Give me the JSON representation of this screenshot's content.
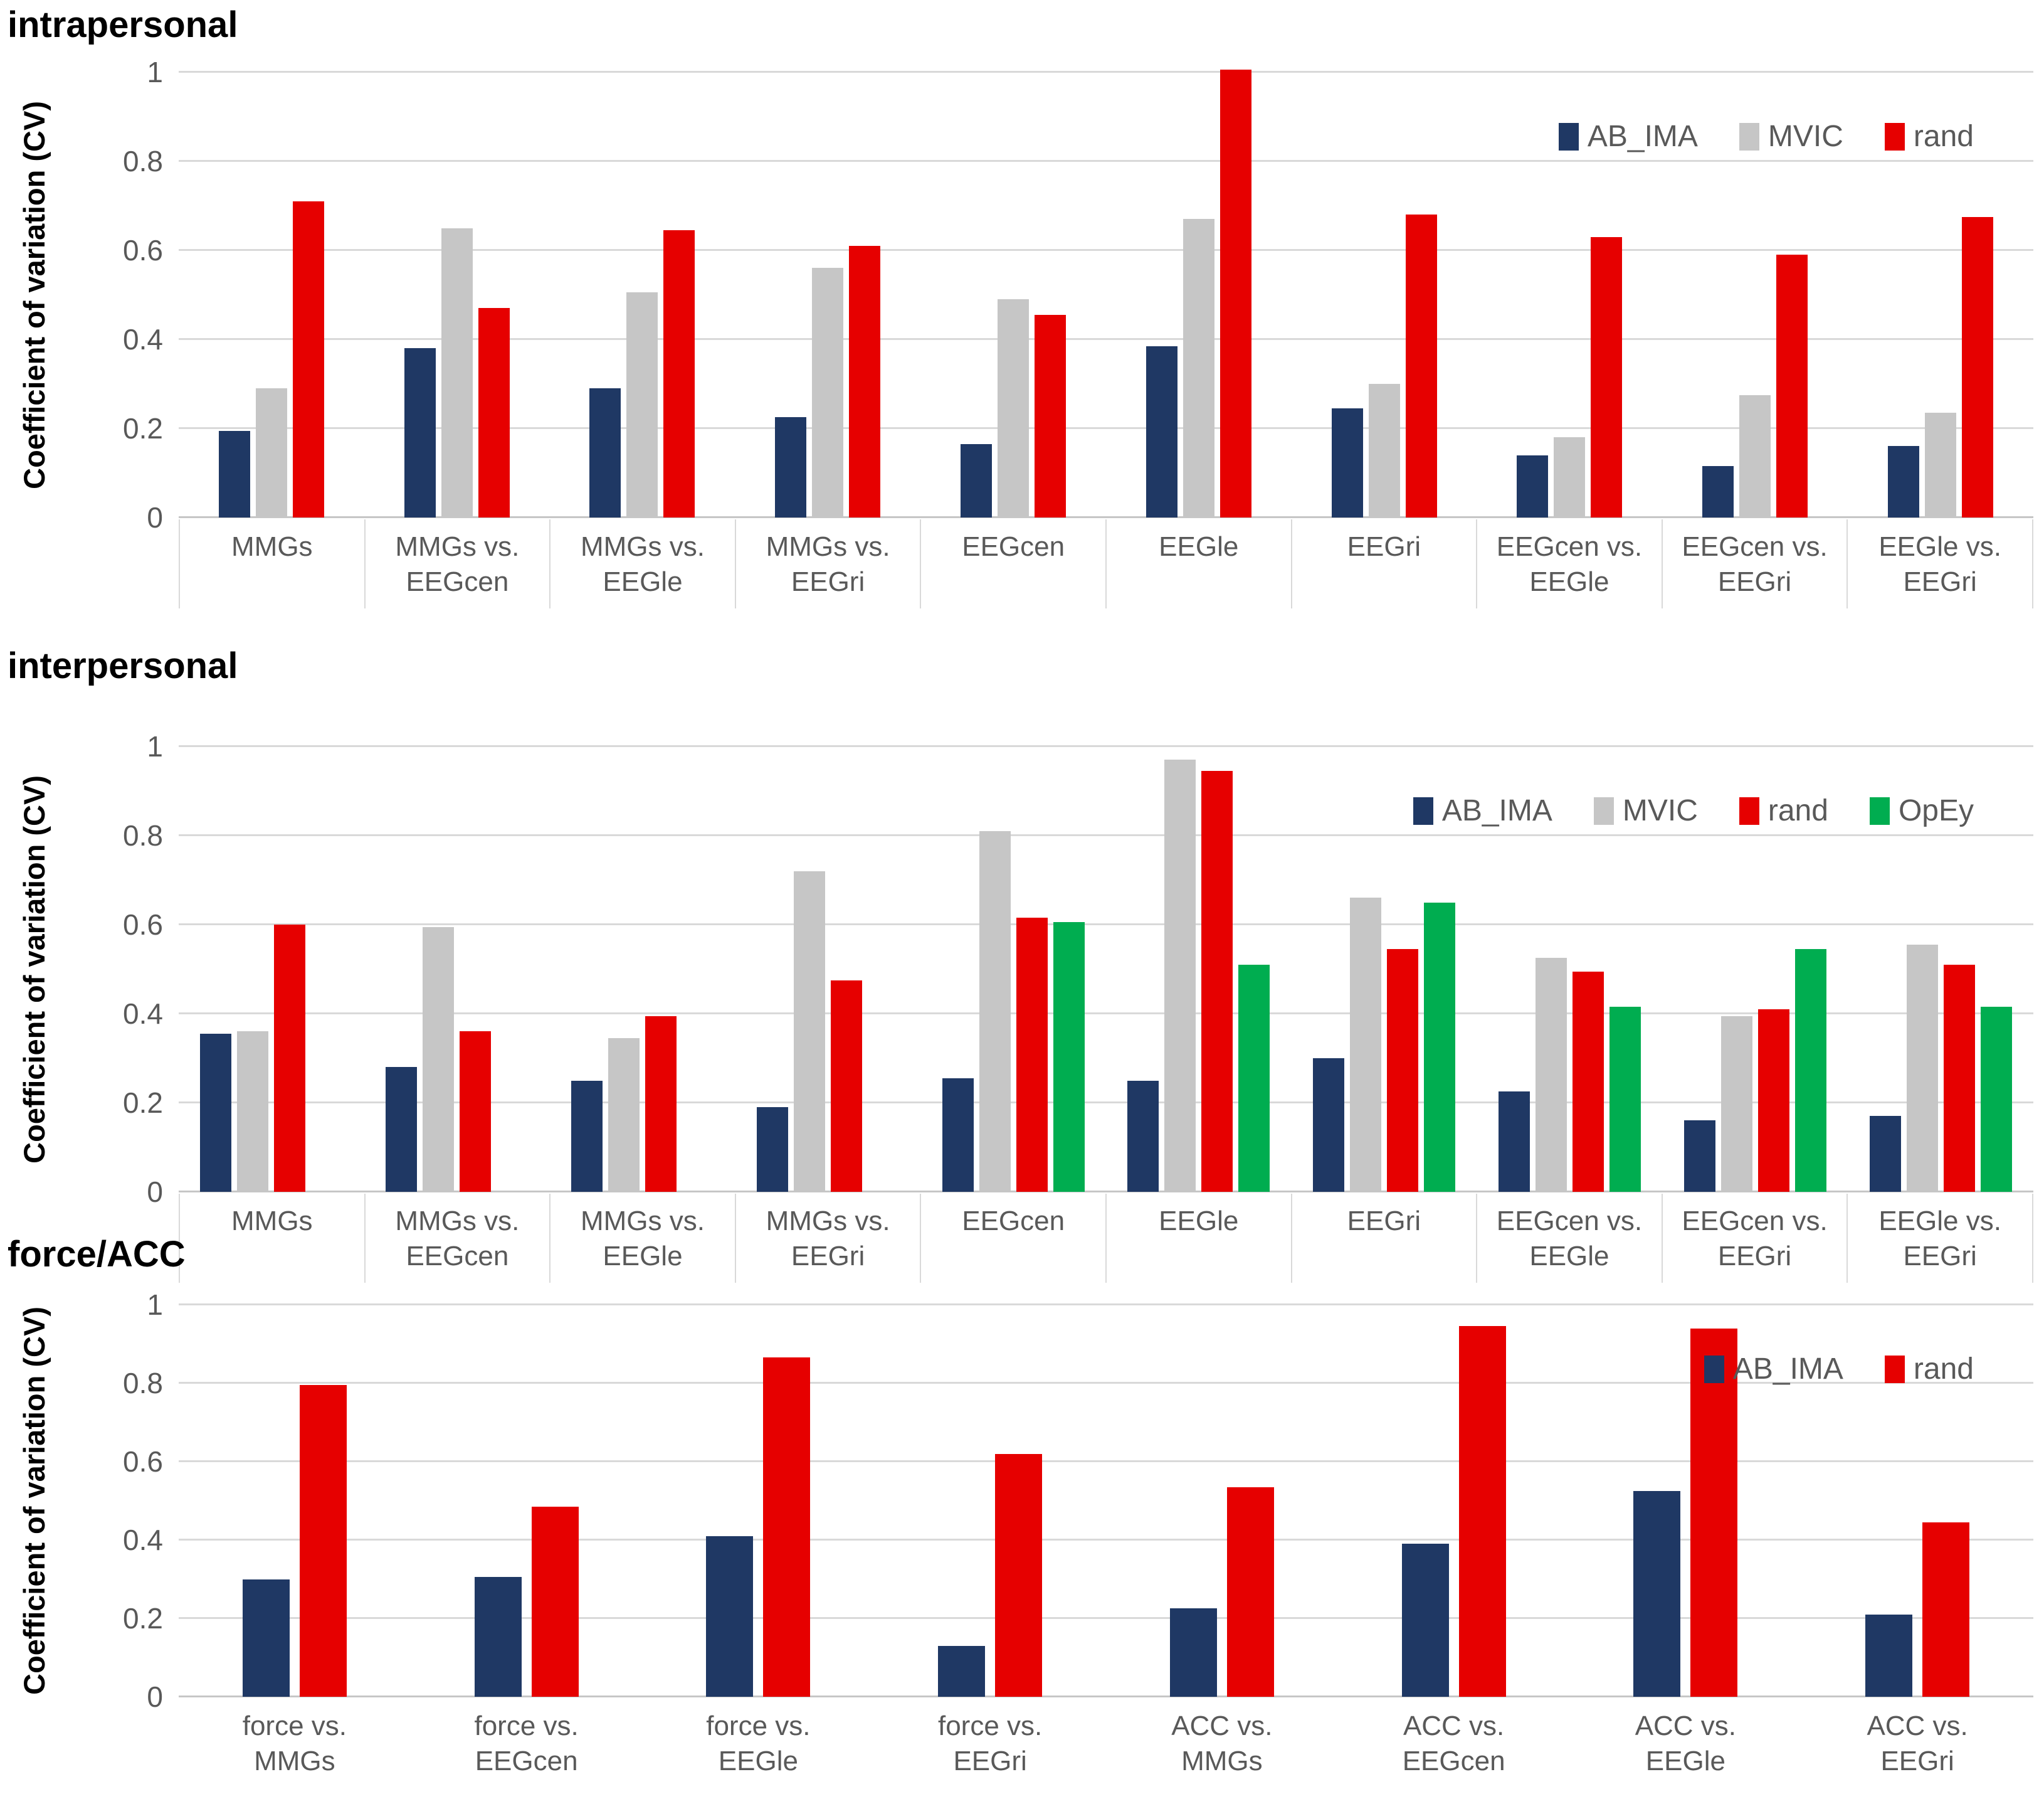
{
  "figure": {
    "background": "#ffffff",
    "ylabel": "Coefficient of variation (CV)",
    "tick_text_color": "#595959",
    "gridline_color": "#d9d9d9",
    "axis_line_color": "#c6c6c6"
  },
  "colors": {
    "AB_IMA": "#1f3864",
    "MVIC": "#c6c6c6",
    "rand": "#e60000",
    "OpEy": "#00ad50"
  },
  "chart_data": [
    {
      "type": "bar",
      "title": "intrapersonal",
      "ylabel": "Coefficient of variation (CV)",
      "ylim": [
        0,
        1
      ],
      "yticks": [
        0,
        0.2,
        0.4,
        0.6,
        0.8,
        1
      ],
      "ytick_labels": [
        "0",
        "0.2",
        "0.4",
        "0.6",
        "0.8",
        "1"
      ],
      "grid": true,
      "legend_position": "top-right",
      "category_boxes": true,
      "categories": [
        "MMGs",
        "MMGs vs.\nEEGcen",
        "MMGs vs.\nEEGle",
        "MMGs vs.\nEEGri",
        "EEGcen",
        "EEGle",
        "EEGri",
        "EEGcen vs.\nEEGle",
        "EEGcen vs.\nEEGri",
        "EEGle vs.\nEEGri"
      ],
      "series": [
        {
          "name": "AB_IMA",
          "color": "#1f3864",
          "values": [
            0.195,
            0.38,
            0.29,
            0.225,
            0.165,
            0.385,
            0.245,
            0.14,
            0.115,
            0.16
          ]
        },
        {
          "name": "MVIC",
          "color": "#c6c6c6",
          "values": [
            0.29,
            0.65,
            0.505,
            0.56,
            0.49,
            0.67,
            0.3,
            0.18,
            0.275,
            0.235
          ]
        },
        {
          "name": "rand",
          "color": "#e60000",
          "values": [
            0.71,
            0.47,
            0.645,
            0.61,
            0.455,
            1.005,
            0.68,
            0.63,
            0.59,
            0.675
          ]
        }
      ]
    },
    {
      "type": "bar",
      "title": "interpersonal",
      "ylabel": "Coefficient of variation (CV)",
      "ylim": [
        0,
        1
      ],
      "yticks": [
        0,
        0.2,
        0.4,
        0.6,
        0.8,
        1
      ],
      "ytick_labels": [
        "0",
        "0.2",
        "0.4",
        "0.6",
        "0.8",
        "1"
      ],
      "grid": true,
      "legend_position": "top-right",
      "category_boxes": true,
      "categories": [
        "MMGs",
        "MMGs vs.\nEEGcen",
        "MMGs vs.\nEEGle",
        "MMGs vs.\nEEGri",
        "EEGcen",
        "EEGle",
        "EEGri",
        "EEGcen vs.\nEEGle",
        "EEGcen vs.\nEEGri",
        "EEGle vs.\nEEGri"
      ],
      "series": [
        {
          "name": "AB_IMA",
          "color": "#1f3864",
          "values": [
            0.355,
            0.28,
            0.25,
            0.19,
            0.255,
            0.25,
            0.3,
            0.225,
            0.16,
            0.17
          ]
        },
        {
          "name": "MVIC",
          "color": "#c6c6c6",
          "values": [
            0.36,
            0.595,
            0.345,
            0.72,
            0.81,
            0.97,
            0.66,
            0.525,
            0.395,
            0.555
          ]
        },
        {
          "name": "rand",
          "color": "#e60000",
          "values": [
            0.6,
            0.36,
            0.395,
            0.475,
            0.615,
            0.945,
            0.545,
            0.495,
            0.41,
            0.51
          ]
        },
        {
          "name": "OpEy",
          "color": "#00ad50",
          "values": [
            null,
            null,
            null,
            null,
            0.605,
            0.51,
            0.65,
            0.415,
            0.545,
            0.415
          ]
        }
      ]
    },
    {
      "type": "bar",
      "title": "force/ACC",
      "ylabel": "Coefficient of variation (CV)",
      "ylim": [
        0,
        1
      ],
      "yticks": [
        0,
        0.2,
        0.4,
        0.6,
        0.8,
        1
      ],
      "ytick_labels": [
        "0",
        "0.2",
        "0.4",
        "0.6",
        "0.8",
        "1"
      ],
      "grid": true,
      "legend_position": "top-right",
      "category_boxes": false,
      "categories": [
        "force vs.\nMMGs",
        "force vs.\nEEGcen",
        "force vs.\nEEGle",
        "force vs.\nEEGri",
        "ACC vs.\nMMGs",
        "ACC vs.\nEEGcen",
        "ACC vs.\nEEGle",
        "ACC vs.\nEEGri"
      ],
      "series": [
        {
          "name": "AB_IMA",
          "color": "#1f3864",
          "values": [
            0.3,
            0.305,
            0.41,
            0.13,
            0.225,
            0.39,
            0.525,
            0.21
          ]
        },
        {
          "name": "rand",
          "color": "#e60000",
          "values": [
            0.795,
            0.485,
            0.865,
            0.62,
            0.535,
            0.945,
            0.94,
            0.445
          ]
        }
      ]
    }
  ]
}
